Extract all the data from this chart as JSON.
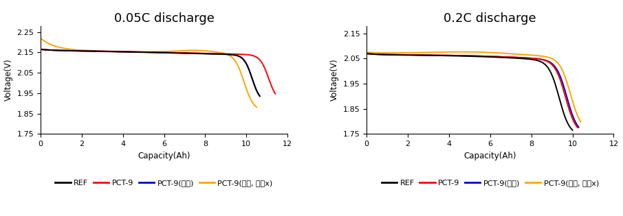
{
  "left_title": "0.05C discharge",
  "right_title": "0.2C discharge",
  "xlabel": "Capacity(Ah)",
  "ylabel": "Voltage(V)",
  "left_ylim": [
    1.75,
    2.28
  ],
  "right_ylim": [
    1.75,
    2.18
  ],
  "xlim": [
    0,
    12
  ],
  "left_yticks": [
    1.75,
    1.85,
    1.95,
    2.05,
    2.15,
    2.25
  ],
  "right_yticks": [
    1.75,
    1.85,
    1.95,
    2.05,
    2.15
  ],
  "xticks": [
    0,
    2,
    4,
    6,
    8,
    10,
    12
  ],
  "title_fontsize": 13,
  "label_fontsize": 8.5,
  "tick_fontsize": 8,
  "legend_fontsize": 8,
  "line_width": 1.4,
  "colors": {
    "REF": "#000000",
    "PCT-9": "#ff0000",
    "PCT-9(개질)": "#0000cc",
    "PCT-9(개질, 정제x)": "#ffa500"
  },
  "legend_labels": [
    "REF",
    "PCT-9",
    "PCT-9(개질)",
    "PCT-9(개질, 정제x)"
  ],
  "background_color": "#ffffff"
}
